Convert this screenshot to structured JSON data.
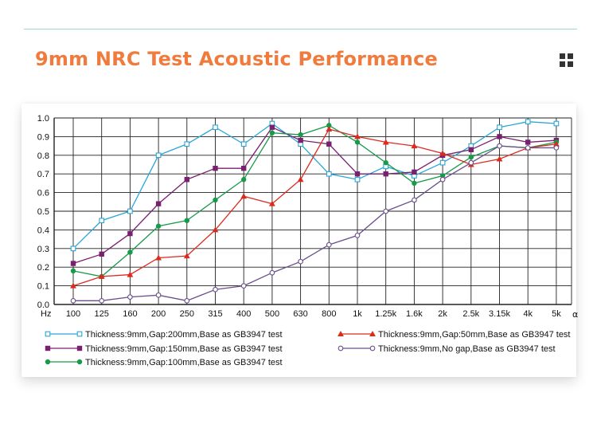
{
  "header": {
    "title": "9mm NRC Test Acoustic Performance"
  },
  "chart_data": {
    "type": "line",
    "title": "9mm NRC Test Acoustic Performance",
    "xlabel": "Hz",
    "ylabel": "α",
    "ylim": [
      0,
      1.0
    ],
    "grid": true,
    "legend_position": "bottom",
    "x": [
      "100",
      "125",
      "160",
      "200",
      "250",
      "315",
      "400",
      "500",
      "630",
      "800",
      "1k",
      "1.25k",
      "1.6k",
      "2k",
      "2.5k",
      "3.15k",
      "4k",
      "5k"
    ],
    "y_ticks": [
      "0.0",
      "0.1",
      "0.2",
      "0.3",
      "0.4",
      "0.5",
      "0.6",
      "0.7",
      "0.8",
      "0.9",
      "1.0"
    ],
    "series": [
      {
        "name": "Thickness:9mm,Gap:200mm,Base as GB3947 test",
        "color": "#2aa6d6",
        "marker": "square-open",
        "values": [
          0.3,
          0.45,
          0.5,
          0.8,
          0.86,
          0.95,
          0.86,
          0.97,
          0.86,
          0.7,
          0.67,
          0.74,
          0.69,
          0.76,
          0.85,
          0.95,
          0.98,
          0.97
        ]
      },
      {
        "name": "Thickness:9mm,Gap:150mm,Base as GB3947 test",
        "color": "#7a2070",
        "marker": "square-filled",
        "values": [
          0.22,
          0.27,
          0.38,
          0.54,
          0.67,
          0.73,
          0.73,
          0.95,
          0.88,
          0.86,
          0.7,
          0.7,
          0.71,
          0.8,
          0.83,
          0.9,
          0.87,
          0.88
        ]
      },
      {
        "name": "Thickness:9mm,Gap:100mm,Base as GB3947 test",
        "color": "#179a4a",
        "marker": "circle-filled",
        "values": [
          0.18,
          0.15,
          0.28,
          0.42,
          0.45,
          0.56,
          0.67,
          0.92,
          0.91,
          0.96,
          0.87,
          0.76,
          0.65,
          0.69,
          0.79,
          0.85,
          0.84,
          0.87
        ]
      },
      {
        "name": "Thickness:9mm,Gap:50mm,Base as GB3947 test",
        "color": "#dc2a1f",
        "marker": "triangle-filled",
        "values": [
          0.1,
          0.15,
          0.16,
          0.25,
          0.26,
          0.4,
          0.58,
          0.54,
          0.67,
          0.94,
          0.9,
          0.87,
          0.85,
          0.81,
          0.75,
          0.78,
          0.84,
          0.86
        ]
      },
      {
        "name": "Thickness:9mm,No gap,Base as GB3947 test",
        "color": "#6a4f8c",
        "marker": "circle-open",
        "values": [
          0.02,
          0.02,
          0.04,
          0.05,
          0.02,
          0.08,
          0.1,
          0.17,
          0.23,
          0.32,
          0.37,
          0.5,
          0.56,
          0.67,
          0.76,
          0.85,
          0.84,
          0.84
        ]
      }
    ],
    "legend_order": [
      0,
      3,
      1,
      4,
      2
    ]
  }
}
